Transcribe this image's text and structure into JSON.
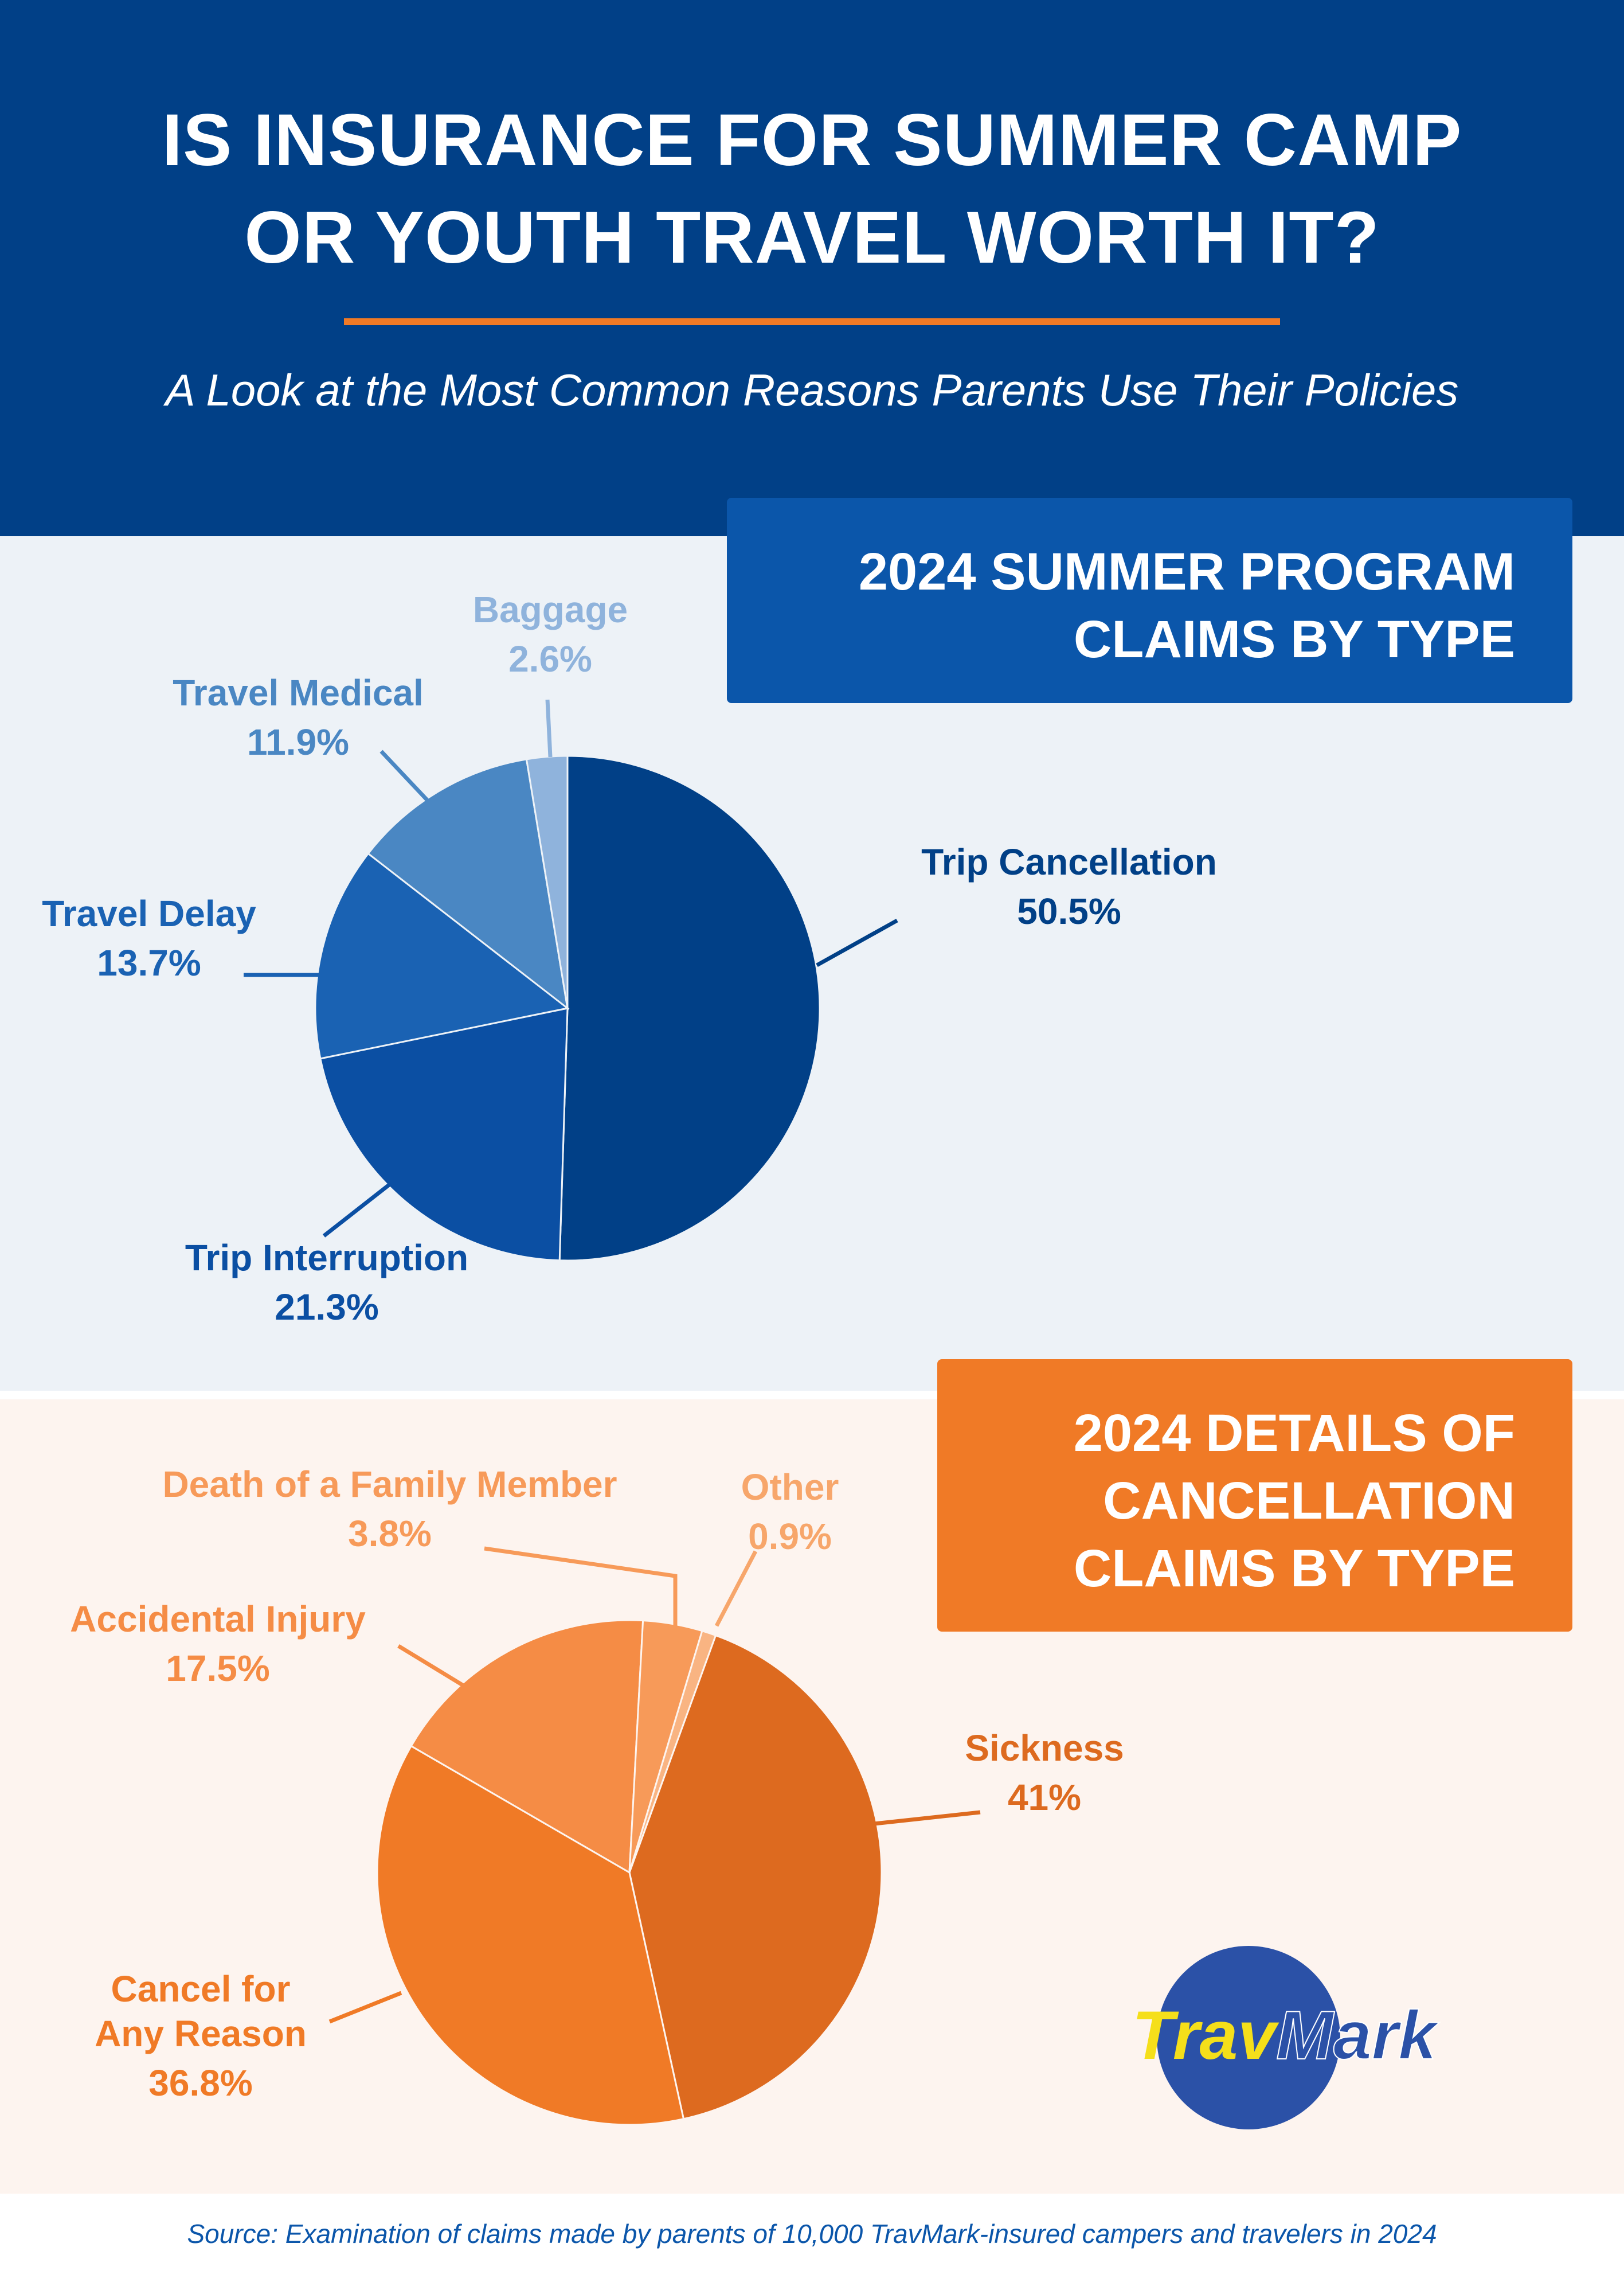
{
  "header": {
    "title_line1": "IS INSURANCE FOR SUMMER CAMP",
    "title_line2": "OR YOUTH TRAVEL WORTH IT?",
    "subtitle": "A Look at the Most Common Reasons Parents Use Their Policies"
  },
  "panels": {
    "claims_title_line1": "2024 SUMMER PROGRAM",
    "claims_title_line2": "CLAIMS BY TYPE",
    "cancel_title_line1": "2024 DETAILS OF",
    "cancel_title_line2": "CANCELLATION",
    "cancel_title_line3": "CLAIMS BY TYPE"
  },
  "chart_data": [
    {
      "type": "pie",
      "title": "2024 SUMMER PROGRAM CLAIMS BY TYPE",
      "start_angle_deg": 0,
      "direction": "clockwise",
      "slices": [
        {
          "label": "Trip Cancellation",
          "value": 50.5,
          "value_label": "50.5%",
          "color": "#014087",
          "label_color": "#014087"
        },
        {
          "label": "Trip Interruption",
          "value": 21.3,
          "value_label": "21.3%",
          "color": "#0b4fa3",
          "label_color": "#0b4fa3"
        },
        {
          "label": "Travel Delay",
          "value": 13.7,
          "value_label": "13.7%",
          "color": "#1a62b3",
          "label_color": "#1a62b3"
        },
        {
          "label": "Travel Medical",
          "value": 11.9,
          "value_label": "11.9%",
          "color": "#4a87c3",
          "label_color": "#4a87c3"
        },
        {
          "label": "Baggage",
          "value": 2.6,
          "value_label": "2.6%",
          "color": "#8fb3dc",
          "label_color": "#8fb3dc"
        }
      ]
    },
    {
      "type": "pie",
      "title": "2024 DETAILS OF CANCELLATION CLAIMS BY TYPE",
      "start_angle_deg": 20,
      "direction": "clockwise",
      "slices": [
        {
          "label": "Sickness",
          "value": 41,
          "value_label": "41%",
          "color": "#dd6a1f",
          "label_color": "#dd6a1f"
        },
        {
          "label": "Cancel for Any Reason",
          "value": 36.8,
          "value_label": "36.8%",
          "color": "#f07a26",
          "label_color": "#f07a26"
        },
        {
          "label": "Accidental Injury",
          "value": 17.5,
          "value_label": "17.5%",
          "color": "#f58c45",
          "label_color": "#f58c45"
        },
        {
          "label": "Death of a Family Member",
          "value": 3.8,
          "value_label": "3.8%",
          "color": "#f79a59",
          "label_color": "#f79a59"
        },
        {
          "label": "Other",
          "value": 0.9,
          "value_label": "0.9%",
          "color": "#f9b482",
          "label_color": "#f7a66b"
        }
      ]
    }
  ],
  "logo": {
    "part1": "Trav",
    "part2": "Mark",
    "circle_color": "#2b51a7",
    "part1_color": "#f5df1a",
    "part2_color": "#2b51a7"
  },
  "source": "Source: Examination of claims made by parents of 10,000 TravMark-insured campers and travelers in 2024"
}
